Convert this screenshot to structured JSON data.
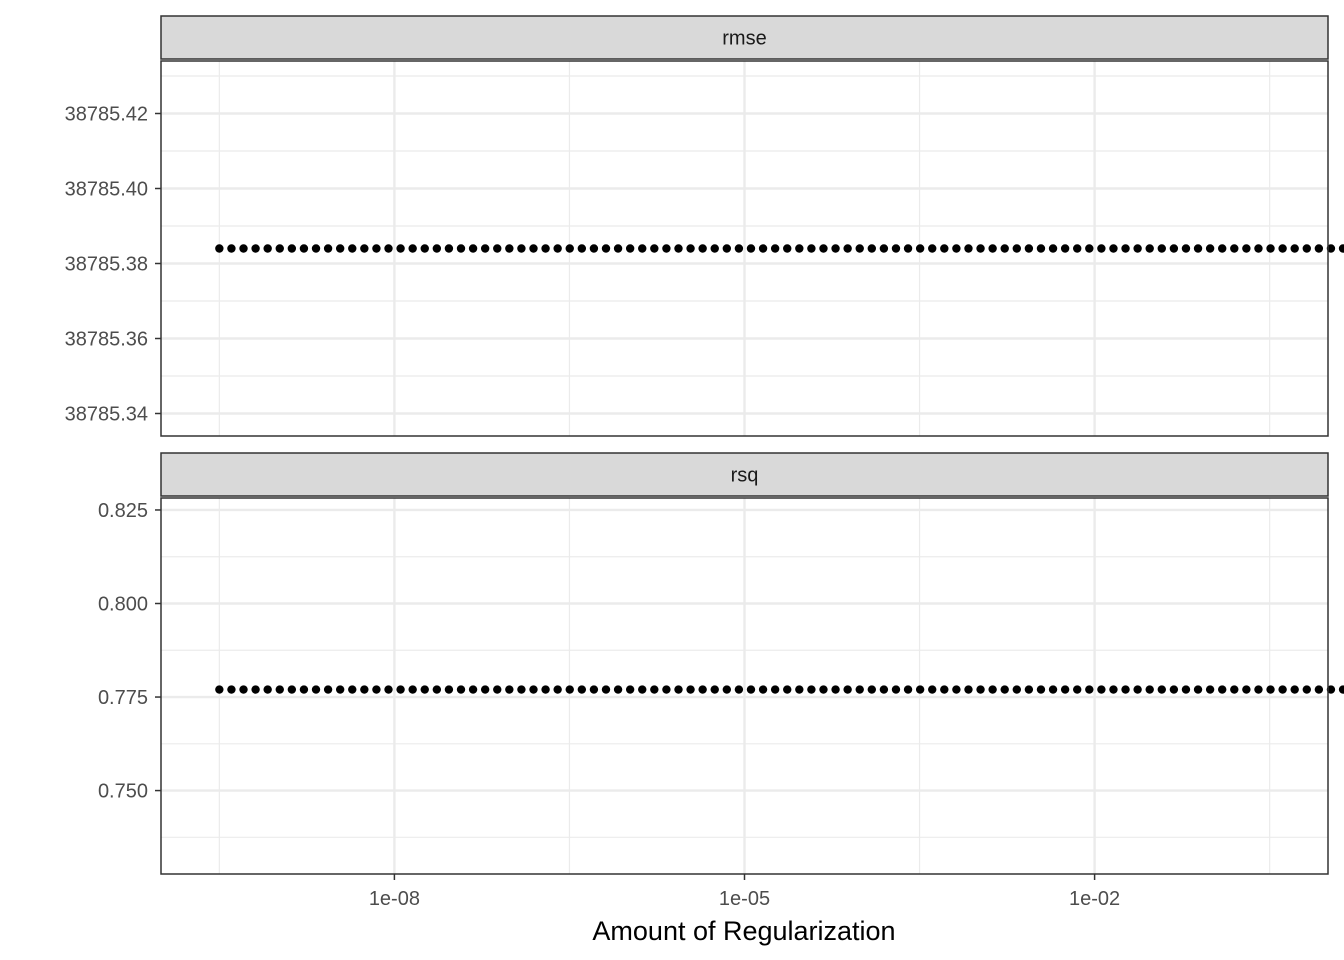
{
  "chart_data": {
    "type": "scatter",
    "xlabel": "Amount of Regularization",
    "ylabel": "",
    "x_scale": "log10",
    "x_range": [
      1e-10,
      1.0
    ],
    "x_ticks": [
      1e-08,
      1e-05,
      0.01
    ],
    "x_tick_labels": [
      "1e-08",
      "1e-05",
      "1e-02"
    ],
    "points_per_panel": 100,
    "grid": true,
    "panels": [
      {
        "name": "rmse",
        "constant_value": 38785.384,
        "ylim": [
          38785.334,
          38785.434
        ],
        "y_ticks": [
          38785.34,
          38785.36,
          38785.38,
          38785.4,
          38785.42
        ],
        "y_tick_labels": [
          "38785.34",
          "38785.36",
          "38785.38",
          "38785.40",
          "38785.42"
        ]
      },
      {
        "name": "rsq",
        "constant_value": 0.777,
        "ylim": [
          0.7277,
          0.8282
        ],
        "y_ticks": [
          0.75,
          0.775,
          0.8,
          0.825
        ],
        "y_tick_labels": [
          "0.750",
          "0.775",
          "0.800",
          "0.825"
        ]
      }
    ]
  },
  "colors": {
    "points": "#000000",
    "strip_fill": "#d9d9d9",
    "grid": "#ebebeb",
    "border": "#333333"
  }
}
